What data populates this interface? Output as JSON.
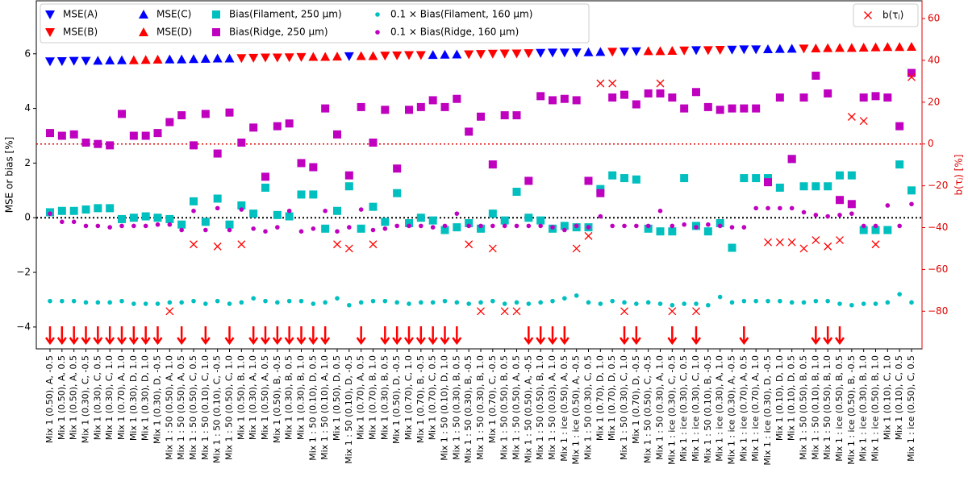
{
  "chart_data": {
    "type": "scatter",
    "ylabel": "MSE or bias [%]",
    "y2label": "b(τⱼ) [%]",
    "ylim": [
      -4.8,
      7.94
    ],
    "yticks": [
      {
        "value": -4,
        "label": "−4"
      },
      {
        "value": -2,
        "label": "−2"
      },
      0,
      2,
      4,
      6
    ],
    "y2lim": [
      -98,
      68.5
    ],
    "y2ticks": [
      {
        "value": -80,
        "label": "−80"
      },
      {
        "value": -60,
        "label": "−60"
      },
      {
        "value": -40,
        "label": "−40"
      },
      {
        "value": -20,
        "label": "−20"
      },
      0,
      20,
      40,
      60
    ],
    "legend": "upper left",
    "legend2": "upper right",
    "categories": [
      "Mix 1 (0.50), A, -0.5",
      "Mix 1 (0.50), A, 0.5",
      "Mix 1 (0.50), A, 0.5",
      "Mix 1 (0.30), C, -0.5",
      "Mix 1 (0.30), C, 0.5",
      "Mix 1 (0.30), C, 1.0",
      "Mix 1 (0.70), A, 1.0",
      "Mix 1 (0.30), D, 1.0",
      "Mix 1 (0.30), D, 1.0",
      "Mix 1 (0.30), D, -0.5",
      "Mix 1 : 50 (0.50), A, 1.0",
      "Mix 1 : 50 (0.50), A, 0.5",
      "Mix 1 : 50 (0.50), C, 0.5",
      "Mix 1 : 50 (0.10), C, 1.0",
      "Mix 1 : 50 (0.10), C, -0.5",
      "Mix 1 : 50 (0.50), C, 1.0",
      "Mix 1 (0.50), B, 1.0",
      "Mix 1 (0.30), A, 1.0",
      "Mix 1 (0.50), A, 0.5",
      "Mix 1 (0.50), B, -0.5",
      "Mix 1 (0.30), B, 0.5",
      "Mix 1 (0.30), B, 1.0",
      "Mix 1 : 50 (0.10), D, 0.5",
      "Mix 1 : 50 (0.10), A, 1.0",
      "Mix 1 (0.50), D, 0.5",
      "Mix 1 : 50 (0.10), D, -0.5",
      "Mix 1 (0.70), A, 0.5",
      "Mix 1 (0.70), B, 1.0",
      "Mix 1 (0.30), B, 0.5",
      "Mix 1 (0.50), D, -0.5",
      "Mix 1 (0.70), C, 1.0",
      "Mix 1 (0.70), B, -0.5",
      "Mix 1 (0.70), C, 0.5",
      "Mix 1 : 50 (0.10), D, 1.0",
      "Mix 1 : 50 (0.30), B, 0.5",
      "Mix 1 : 50 (0.30), B, -0.5",
      "Mix 1 : 50 (0.30), B, 1.0",
      "Mix 1 (0.70), C, -0.5",
      "Mix 1 : 50 (0.50), B, 0.5",
      "Mix 1 : 50 (0.50), A, 0.5",
      "Mix 1 : 50 (0.50), A, -0.5",
      "Mix 1 : 50 (0.50), B, 1.0",
      "Mix 1 : 50 (0.03), A, 1.0",
      "Mix 1 : ice (0.50), A, 0.5",
      "Mix 1 : ice (0.50), A, -0.5",
      "Mix 1 : 50 (0.30), C, 0.5",
      "Mix 1 (0.70), D, 1.0",
      "Mix 1 (0.70), D, 0.5",
      "Mix 1 : 50 (0.30), C, 1.0",
      "Mix 1 (0.70), D, -0.5",
      "Mix 1 : 50 (0.50), C, -0.5",
      "Mix 1 : 50 (0.30), A, 1.0",
      "Mix 1 : ice (0.30), C, -0.5",
      "Mix 1 : ice (0.30), C, 0.5",
      "Mix 1 : ice (0.30), C, 1.0",
      "Mix 1 : 50 (0.10), B, -0.5",
      "Mix 1 : ice (0.30), A, 1.0",
      "Mix 1 : ice (0.30), A, -0.5",
      "Mix 1 : ice (0.70), A, 0.5",
      "Mix 1 : ice (0.70), A, 1.0",
      "Mix 1 : ice (0.30), D, -0.5",
      "Mix 1 (0.10), D, 1.0",
      "Mix 1 (0.10), D, 0.5",
      "Mix 1 : 50 (0.50), B, 0.5",
      "Mix 1 : 50 (0.10), B, 1.0",
      "Mix 1 : 50 (0.50), B, 1.0",
      "Mix 1 : ice (0.50), B, 0.5",
      "Mix 1 : ice (0.50), B, -0.5",
      "Mix 1 : ice (0.30), B, 1.0",
      "Mix 1 : ice (0.50), B, 1.0",
      "Mix 1 (0.10), C, 1.0",
      "Mix 1 (0.10), C, 0.5",
      "Mix 1 : ice (0.50), C, 0.5"
    ],
    "series": [
      {
        "name": "MSE(A)",
        "color": "#0000ff",
        "marker": "v",
        "values": [
          5.72,
          5.73,
          5.74,
          5.74,
          null,
          null,
          null,
          null,
          null,
          null,
          null,
          null,
          null,
          null,
          null,
          null,
          null,
          null,
          null,
          null,
          null,
          null,
          null,
          null,
          null,
          5.91,
          null,
          null,
          null,
          null,
          null,
          null,
          null,
          null,
          null,
          null,
          null,
          null,
          null,
          null,
          null,
          6.03,
          6.04,
          6.04,
          6.05,
          null,
          null,
          null,
          6.08,
          6.09,
          null,
          null,
          null,
          null,
          6.13,
          null,
          null,
          6.15,
          6.16,
          6.16,
          null,
          null,
          null,
          null,
          null,
          null,
          null,
          null,
          null,
          null,
          null,
          null,
          null
        ]
      },
      {
        "name": "MSE(B)",
        "color": "#ff0000",
        "marker": "v",
        "values": [
          null,
          null,
          null,
          null,
          null,
          null,
          null,
          null,
          null,
          null,
          null,
          null,
          null,
          null,
          null,
          null,
          5.84,
          5.85,
          5.86,
          5.86,
          5.87,
          5.88,
          null,
          null,
          null,
          null,
          null,
          null,
          5.93,
          5.94,
          5.95,
          5.95,
          null,
          null,
          null,
          5.98,
          5.99,
          6.0,
          6.01,
          6.01,
          6.02,
          null,
          null,
          null,
          null,
          null,
          null,
          6.07,
          null,
          null,
          null,
          null,
          null,
          6.12,
          null,
          6.13,
          6.14,
          null,
          null,
          null,
          null,
          null,
          null,
          6.19,
          null,
          null,
          null,
          null,
          null,
          null,
          null,
          null,
          null
        ]
      },
      {
        "name": "MSE(C)",
        "color": "#0000ff",
        "marker": "^",
        "values": [
          null,
          null,
          null,
          null,
          5.75,
          5.76,
          5.77,
          null,
          null,
          null,
          5.8,
          5.8,
          5.81,
          5.82,
          5.83,
          5.83,
          null,
          null,
          null,
          null,
          null,
          null,
          null,
          null,
          null,
          null,
          null,
          null,
          null,
          null,
          null,
          null,
          5.96,
          5.97,
          5.98,
          null,
          null,
          null,
          null,
          null,
          null,
          null,
          null,
          null,
          null,
          6.06,
          6.07,
          null,
          null,
          null,
          null,
          null,
          null,
          null,
          null,
          null,
          null,
          null,
          null,
          null,
          6.17,
          6.18,
          6.19,
          null,
          null,
          null,
          null,
          null,
          null,
          null,
          null,
          null,
          null
        ]
      },
      {
        "name": "MSE(D)",
        "color": "#ff0000",
        "marker": "^",
        "values": [
          null,
          null,
          null,
          null,
          null,
          null,
          null,
          5.77,
          5.78,
          5.79,
          null,
          null,
          null,
          null,
          null,
          null,
          null,
          null,
          null,
          null,
          null,
          null,
          5.89,
          5.89,
          5.9,
          null,
          5.92,
          5.92,
          null,
          null,
          null,
          null,
          null,
          null,
          null,
          null,
          null,
          null,
          null,
          null,
          null,
          null,
          null,
          null,
          null,
          null,
          null,
          null,
          null,
          null,
          6.1,
          6.1,
          6.11,
          null,
          null,
          null,
          null,
          null,
          null,
          null,
          null,
          null,
          null,
          null,
          6.2,
          6.21,
          6.22,
          6.22,
          6.23,
          6.24,
          6.25,
          6.25,
          6.26
        ]
      },
      {
        "name": "Bias(Filament, 250 µm)",
        "color": "#00bfbf",
        "marker": "s",
        "values": [
          0.2,
          0.25,
          0.25,
          0.3,
          0.35,
          0.35,
          -0.05,
          0,
          0.05,
          0,
          -0.05,
          -0.25,
          0.6,
          -0.15,
          0.7,
          -0.25,
          0.45,
          0.15,
          1.1,
          0.1,
          0.05,
          0.85,
          0.85,
          -0.4,
          0.25,
          1.15,
          -0.4,
          0.4,
          -0.15,
          0.9,
          -0.2,
          0,
          -0.1,
          -0.45,
          -0.35,
          -0.2,
          -0.4,
          0.15,
          -0.1,
          0.95,
          0,
          -0.1,
          -0.4,
          -0.3,
          -0.35,
          -0.35,
          1.05,
          1.55,
          1.45,
          1.4,
          -0.4,
          -0.5,
          -0.5,
          1.45,
          -0.3,
          -0.5,
          -0.2,
          -1.1,
          1.45,
          1.45,
          1.45,
          1.1,
          2.15,
          1.15,
          1.15,
          1.15,
          1.55,
          1.55,
          -0.45,
          -0.45,
          -0.45,
          1.95,
          1.0
        ]
      },
      {
        "name": "Bias(Ridge, 250 µm)",
        "color": "#bf00bf",
        "marker": "s",
        "values": [
          3.1,
          3.0,
          3.05,
          2.75,
          2.7,
          2.65,
          3.8,
          3.0,
          3.0,
          3.1,
          3.5,
          3.75,
          2.65,
          3.8,
          2.35,
          3.85,
          2.75,
          3.3,
          1.5,
          3.35,
          3.45,
          2.0,
          1.85,
          4.0,
          3.05,
          1.55,
          4.05,
          2.75,
          3.95,
          1.8,
          3.95,
          4.05,
          4.3,
          4.05,
          4.35,
          3.15,
          3.7,
          1.95,
          3.75,
          3.75,
          1.35,
          4.45,
          4.3,
          4.35,
          4.3,
          1.35,
          0.9,
          4.4,
          4.5,
          4.15,
          4.55,
          4.55,
          4.4,
          4.0,
          4.6,
          4.05,
          3.95,
          4.0,
          4.0,
          4.0,
          1.3,
          4.4,
          2.15,
          4.4,
          5.2,
          4.55,
          0.65,
          0.5,
          4.4,
          4.45,
          4.4,
          3.35,
          5.3
        ]
      },
      {
        "name": "0.1 × Bias(Filament, 160 µm)",
        "color": "#00bfbf",
        "marker": "o",
        "values": [
          -3.05,
          -3.05,
          -3.05,
          -3.1,
          -3.1,
          -3.1,
          -3.05,
          -3.15,
          -3.15,
          -3.15,
          -3.1,
          -3.1,
          -3.05,
          -3.15,
          -3.05,
          -3.15,
          -3.1,
          -2.95,
          -3.05,
          -3.1,
          -3.05,
          -3.05,
          -3.15,
          -3.1,
          -2.95,
          -3.2,
          -3.1,
          -3.05,
          -3.05,
          -3.1,
          -3.15,
          -3.1,
          -3.1,
          -3.05,
          -3.1,
          -3.15,
          -3.1,
          -3.05,
          -3.15,
          -3.1,
          -3.15,
          -3.1,
          -3.05,
          -2.95,
          -2.85,
          -3.1,
          -3.15,
          -3.05,
          -3.1,
          -3.15,
          -3.1,
          -3.15,
          -3.2,
          -3.15,
          -3.15,
          -3.2,
          -2.9,
          -3.1,
          -3.05,
          -3.05,
          -3.05,
          -3.05,
          -3.1,
          -3.1,
          -3.05,
          -3.05,
          -3.15,
          -3.2,
          -3.15,
          -3.15,
          -3.1,
          -2.8,
          -3.1
        ]
      },
      {
        "name": "0.1 × Bias(Ridge, 160 µm)",
        "color": "#bf00bf",
        "marker": "o",
        "values": [
          0.15,
          -0.15,
          -0.15,
          -0.3,
          -0.3,
          -0.35,
          -0.3,
          -0.3,
          -0.3,
          -0.25,
          -0.25,
          -0.45,
          0.25,
          -0.45,
          0.35,
          -0.45,
          0.3,
          -0.4,
          -0.5,
          -0.35,
          0.25,
          -0.5,
          -0.4,
          0.25,
          -0.5,
          -0.35,
          0.3,
          -0.45,
          -0.4,
          -0.3,
          -0.3,
          -0.3,
          -0.35,
          -0.3,
          0.15,
          -0.3,
          -0.3,
          -0.3,
          -0.3,
          -0.3,
          -0.3,
          -0.3,
          -0.35,
          -0.45,
          -0.3,
          -0.35,
          0.05,
          -0.3,
          -0.3,
          -0.3,
          -0.3,
          0.25,
          -0.3,
          -0.25,
          -0.35,
          -0.25,
          -0.3,
          -0.35,
          -0.35,
          0.35,
          0.35,
          0.35,
          0.35,
          0.2,
          0.1,
          0.05,
          0.1,
          0.15,
          -0.3,
          -0.3,
          0.45,
          -0.3,
          0.5
        ]
      }
    ],
    "series2": [
      {
        "name": "b(τⱼ)",
        "color": "#ff0000",
        "marker": "x",
        "axis": "y2",
        "values": [
          null,
          null,
          null,
          null,
          null,
          null,
          null,
          null,
          null,
          null,
          -80,
          null,
          -48,
          null,
          -49,
          null,
          -48,
          null,
          null,
          null,
          null,
          null,
          null,
          null,
          -48,
          -50,
          null,
          -48,
          null,
          null,
          null,
          null,
          null,
          null,
          null,
          -48,
          -80,
          -50,
          -80,
          -80,
          null,
          null,
          null,
          null,
          -50,
          -44,
          29,
          29,
          -80,
          null,
          null,
          29,
          -80,
          null,
          -80,
          null,
          null,
          null,
          null,
          null,
          -47,
          -47,
          -47,
          -50,
          -46,
          -49,
          -46,
          13,
          11,
          -48,
          null,
          null,
          32
        ]
      }
    ],
    "arrows": [
      0,
      1,
      2,
      3,
      4,
      5,
      6,
      7,
      8,
      9,
      11,
      13,
      15,
      17,
      18,
      19,
      20,
      21,
      22,
      23,
      26,
      28,
      29,
      30,
      31,
      32,
      33,
      34,
      40,
      41,
      42,
      43,
      48,
      49,
      52,
      54,
      58,
      64,
      65,
      66
    ],
    "arrow_color": "#ff0000"
  }
}
